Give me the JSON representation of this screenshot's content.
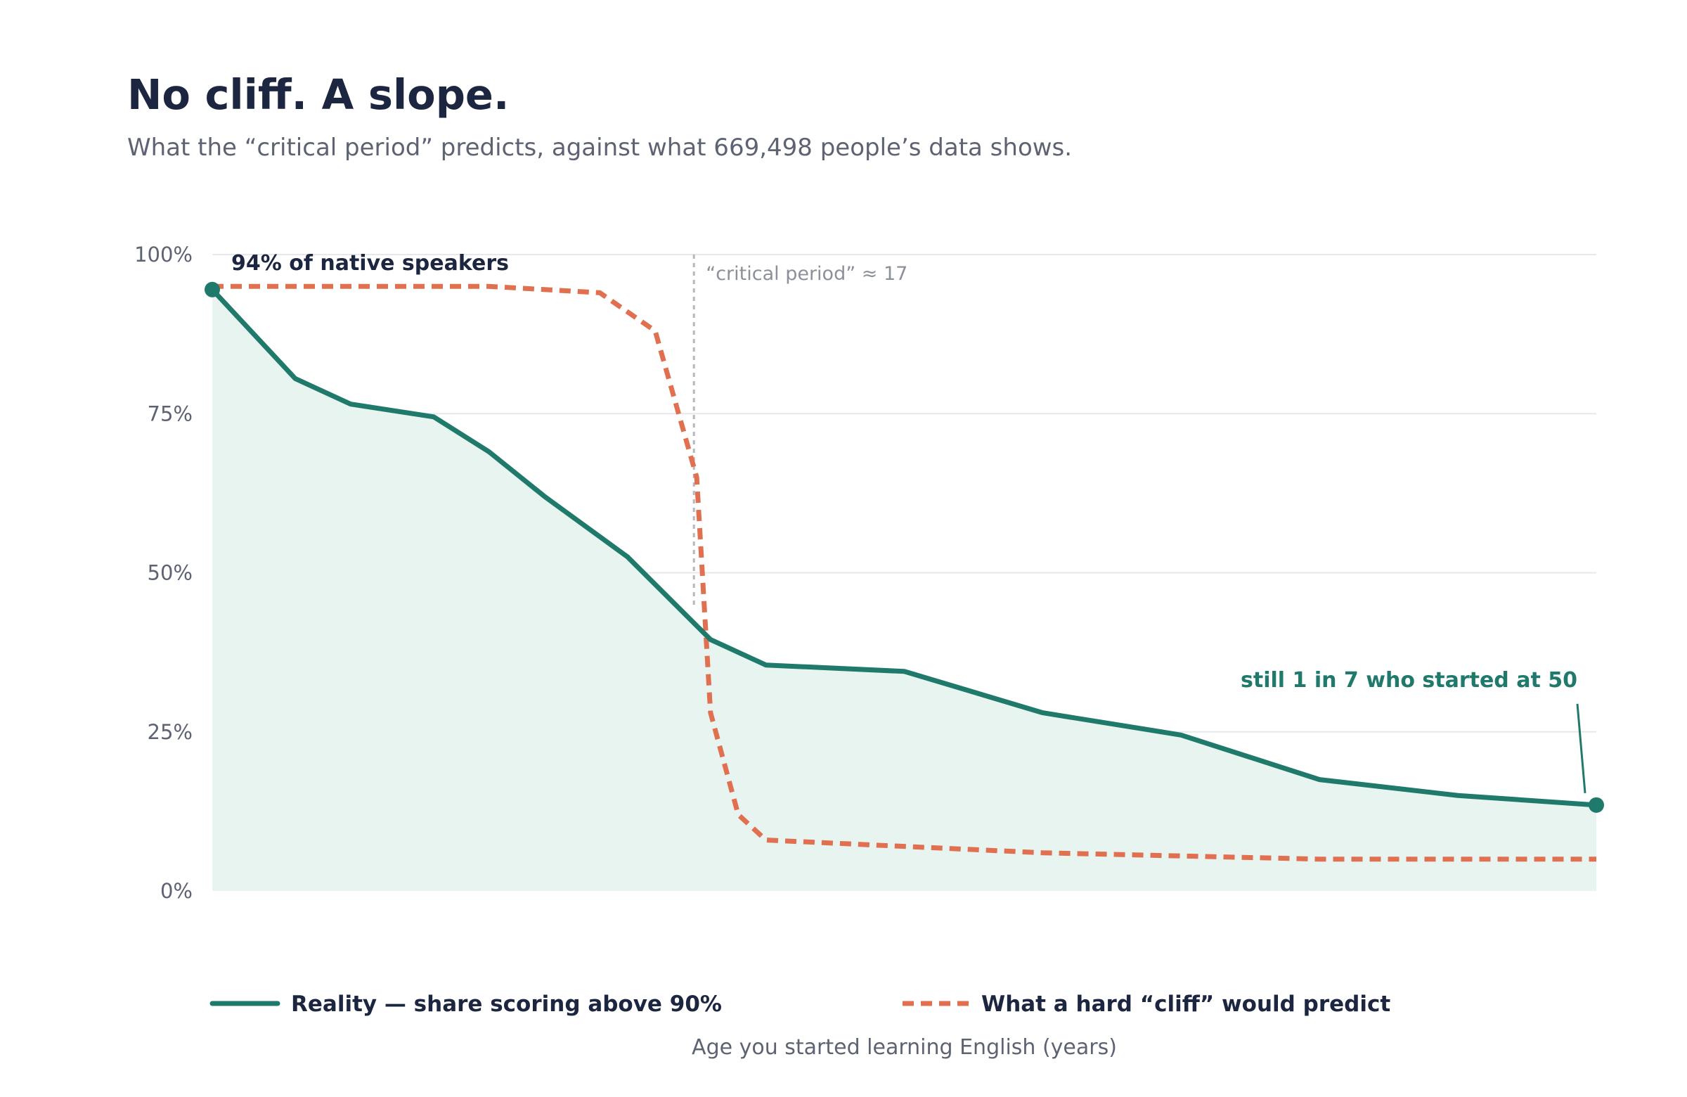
{
  "title": "No cliff. A slope.",
  "subtitle": "What the “critical period” predicts, against what 669,498 people’s data shows.",
  "chart_data": {
    "type": "line",
    "xlabel": "Age you started learning English (years)",
    "ylabel": "",
    "xlim": [
      0,
      50
    ],
    "ylim": [
      0,
      100
    ],
    "y_ticks": [
      "0%",
      "25%",
      "50%",
      "75%",
      "100%"
    ],
    "y_tick_values": [
      0,
      25,
      50,
      75,
      100
    ],
    "grid": true,
    "legend_position": "bottom",
    "series": [
      {
        "name": "Reality — share scoring above 90%",
        "color": "#1f7a6b",
        "style": "solid",
        "fill": true,
        "x": [
          0,
          3,
          5,
          8,
          10,
          12,
          15,
          18,
          20,
          25,
          30,
          35,
          40,
          45,
          50
        ],
        "y": [
          94.5,
          80.5,
          76.5,
          74.5,
          69.0,
          62.0,
          52.5,
          39.5,
          35.5,
          34.5,
          28.0,
          24.5,
          17.5,
          15.0,
          13.5
        ]
      },
      {
        "name": "What a hard “cliff” would predict",
        "color": "#e07050",
        "style": "dashed",
        "fill": false,
        "x": [
          0,
          5,
          10,
          14,
          16,
          17.5,
          18,
          19,
          20,
          25,
          30,
          35,
          40,
          45,
          50
        ],
        "y": [
          95.0,
          95.0,
          95.0,
          94.0,
          88.0,
          65.0,
          28.0,
          12.0,
          8.0,
          7.0,
          6.0,
          5.5,
          5.0,
          5.0,
          5.0
        ]
      }
    ],
    "reference_line": {
      "x": 17.4,
      "label": "“critical period” ≈ 17"
    },
    "annotations": [
      {
        "text": "94% of native speakers",
        "series": 0,
        "point": 0
      },
      {
        "text": "still 1 in 7 who started at 50",
        "series": 0,
        "point": 14
      }
    ]
  }
}
